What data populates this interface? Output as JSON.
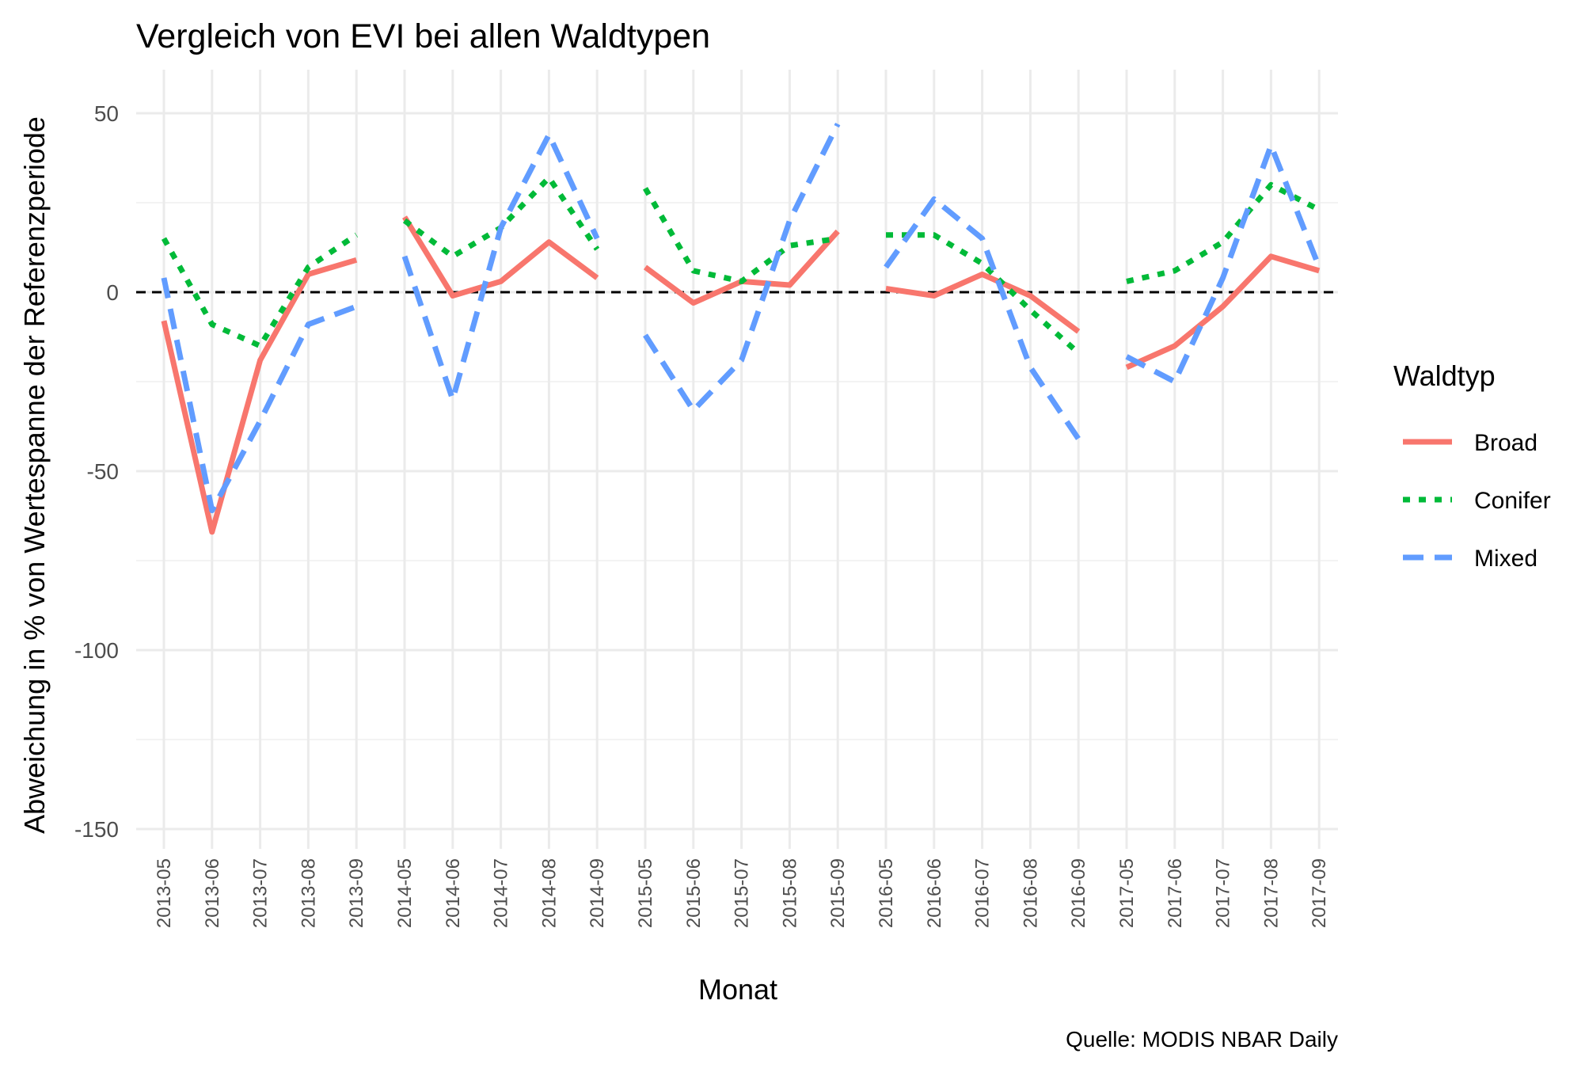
{
  "chart_data": {
    "type": "line",
    "title": "Vergleich von EVI bei allen Waldtypen",
    "xlabel": "Monat",
    "ylabel": "Abweichung in % von Wertespanne der Referenzperiode",
    "caption": "Quelle: MODIS NBAR Daily",
    "legend_title": "Waldtyp",
    "legend_position": "right",
    "grid": true,
    "reference_line": {
      "y": 0,
      "style": "dashed",
      "color": "#000000"
    },
    "ylim": [
      -160,
      55
    ],
    "yticks": [
      50,
      0,
      -50,
      -100,
      -150
    ],
    "categories": [
      "2013-05",
      "2013-06",
      "2013-07",
      "2013-08",
      "2013-09",
      "2014-05",
      "2014-06",
      "2014-07",
      "2014-08",
      "2014-09",
      "2015-05",
      "2015-06",
      "2015-07",
      "2015-08",
      "2015-09",
      "2016-05",
      "2016-06",
      "2016-07",
      "2016-08",
      "2016-09",
      "2017-05",
      "2017-06",
      "2017-07",
      "2017-08",
      "2017-09"
    ],
    "segments": [
      [
        0,
        4
      ],
      [
        5,
        9
      ],
      [
        10,
        14
      ],
      [
        15,
        19
      ],
      [
        20,
        24
      ]
    ],
    "series": [
      {
        "name": "Broad",
        "color": "#F8766D",
        "dash": "solid",
        "values": [
          -8,
          -67,
          -19,
          5,
          9,
          21,
          -1,
          3,
          14,
          4,
          7,
          -3,
          3,
          2,
          17,
          1,
          -1,
          5,
          -1,
          -11,
          -21,
          -15,
          -4,
          10,
          6
        ]
      },
      {
        "name": "Conifer",
        "color": "#00BA38",
        "dash": "dotted",
        "values": [
          15,
          -9,
          -15,
          7,
          16,
          20,
          10,
          18,
          32,
          12,
          29,
          6,
          3,
          13,
          15,
          16,
          16,
          8,
          -5,
          -17,
          3,
          6,
          14,
          30,
          23
        ]
      },
      {
        "name": "Mixed",
        "color": "#619CFF",
        "dash": "dashed",
        "values": [
          4,
          -61,
          -36,
          -9,
          -4,
          10,
          -30,
          18,
          44,
          15,
          -12,
          -33,
          -19,
          20,
          47,
          7,
          26,
          15,
          -21,
          -41,
          -18,
          -25,
          4,
          41,
          7
        ]
      }
    ]
  }
}
